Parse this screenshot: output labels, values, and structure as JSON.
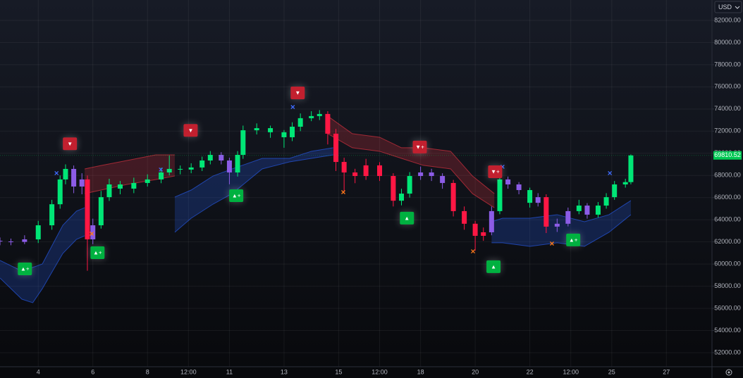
{
  "chart_data": {
    "type": "candlestick",
    "currency": "USD",
    "xlim": [
      2.6,
      28.67
    ],
    "ylim": [
      50730,
      83840
    ],
    "xticks": [
      4,
      6,
      8,
      {
        "value": 9.5,
        "label": "12:00"
      },
      11,
      13,
      15,
      {
        "value": 16.5,
        "label": "12:00"
      },
      18,
      20,
      22,
      {
        "value": 23.5,
        "label": "12:00"
      },
      25,
      27
    ],
    "yticks": [
      {
        "value": 52000,
        "label": "52000.00"
      },
      {
        "value": 54000,
        "label": "54000.00"
      },
      {
        "value": 56000,
        "label": "56000.00"
      },
      {
        "value": 58000,
        "label": "58000.00"
      },
      {
        "value": 60000,
        "label": "60000.00"
      },
      {
        "value": 62000,
        "label": "62000.00"
      },
      {
        "value": 64000,
        "label": "64000.00"
      },
      {
        "value": 66000,
        "label": "66000.00"
      },
      {
        "value": 68000,
        "label": "68000.00"
      },
      {
        "value": 70000,
        "label": "70000.00"
      },
      {
        "value": 72000,
        "label": "72000.00"
      },
      {
        "value": 74000,
        "label": "74000.00"
      },
      {
        "value": 76000,
        "label": "76000.00"
      },
      {
        "value": 78000,
        "label": "78000.00"
      },
      {
        "value": 80000,
        "label": "80000.00"
      },
      {
        "value": 82000,
        "label": "82000.00"
      }
    ],
    "grid": true,
    "last_price": {
      "value": 69810.52,
      "label": "69810.52",
      "color": "#00c853"
    },
    "candles": {
      "x": [
        2.6,
        3.0,
        3.5,
        4.0,
        4.5,
        4.8,
        5.0,
        5.3,
        5.6,
        5.8,
        6.0,
        6.3,
        6.6,
        7.0,
        7.5,
        8.0,
        8.5,
        8.8,
        9.2,
        9.6,
        10.0,
        10.3,
        10.7,
        11.0,
        11.3,
        11.5,
        12.0,
        12.5,
        13.0,
        13.3,
        13.6,
        14.0,
        14.3,
        14.6,
        14.9,
        15.2,
        15.6,
        16.0,
        16.5,
        17.0,
        17.3,
        17.6,
        18.0,
        18.4,
        18.8,
        19.2,
        19.6,
        20.0,
        20.3,
        20.6,
        20.9,
        21.2,
        21.6,
        22.0,
        22.3,
        22.6,
        23.0,
        23.4,
        23.8,
        24.1,
        24.5,
        24.8,
        25.1,
        25.5,
        25.7
      ],
      "open": [
        62100,
        62040,
        62000,
        62230,
        63500,
        65400,
        67640,
        68590,
        67000,
        67640,
        62230,
        63500,
        66040,
        67190,
        66810,
        67320,
        67640,
        68270,
        68590,
        68530,
        68720,
        69350,
        69860,
        69350,
        68270,
        69860,
        72080,
        72270,
        71900,
        71450,
        72400,
        73170,
        73360,
        73550,
        71770,
        69220,
        68270,
        67950,
        68910,
        67950,
        65720,
        66360,
        67950,
        68270,
        67950,
        67320,
        64780,
        63640,
        62550,
        62870,
        64780,
        67640,
        67190,
        66680,
        65530,
        66040,
        63380,
        63640,
        64780,
        65280,
        64460,
        65280,
        66040,
        67190,
        67400
      ],
      "high": [
        62400,
        62300,
        62600,
        63900,
        65800,
        68000,
        69000,
        68900,
        68200,
        68000,
        64100,
        66600,
        67700,
        67500,
        67800,
        68100,
        68700,
        69800,
        68900,
        69100,
        69700,
        70200,
        70100,
        69600,
        70200,
        72500,
        72700,
        72500,
        72100,
        72800,
        73600,
        73800,
        73900,
        73800,
        72200,
        69600,
        68600,
        69500,
        69200,
        68200,
        66800,
        68300,
        68800,
        68600,
        68200,
        67600,
        65200,
        63900,
        63300,
        65200,
        68200,
        67900,
        67400,
        66900,
        66400,
        66300,
        64100,
        65100,
        65800,
        65500,
        65600,
        66400,
        67500,
        67700,
        69900
      ],
      "low": [
        61700,
        61700,
        61800,
        61900,
        63100,
        65000,
        67200,
        66400,
        66300,
        59400,
        61800,
        63200,
        65700,
        66300,
        66400,
        67000,
        67300,
        68000,
        68100,
        68200,
        68400,
        69000,
        69000,
        67200,
        67900,
        69500,
        71700,
        71400,
        70500,
        71100,
        72000,
        72900,
        73000,
        70800,
        68400,
        66500,
        67300,
        67600,
        67500,
        65200,
        65300,
        66000,
        67600,
        67500,
        66800,
        64300,
        63100,
        61200,
        62100,
        62600,
        64500,
        66800,
        66300,
        65100,
        65200,
        62800,
        62900,
        63400,
        64500,
        64100,
        64200,
        65000,
        65800,
        66900,
        67200
      ],
      "close": [
        62040,
        62000,
        62230,
        63500,
        65400,
        67640,
        68590,
        67000,
        67640,
        62230,
        63500,
        66040,
        67190,
        66810,
        67320,
        67640,
        68270,
        68590,
        68530,
        68720,
        69350,
        69860,
        69350,
        68270,
        69860,
        72080,
        72270,
        71900,
        71450,
        72400,
        73170,
        73360,
        73550,
        71770,
        69220,
        68270,
        67950,
        68910,
        67950,
        65720,
        66360,
        67950,
        68270,
        67950,
        67320,
        64780,
        63640,
        62550,
        62870,
        64780,
        67640,
        67190,
        66680,
        65530,
        66040,
        63380,
        63640,
        64780,
        65280,
        64460,
        65280,
        66040,
        67190,
        67400,
        69810.52
      ],
      "colors": [
        "#8c5ce6",
        "#8c5ce6",
        "#8c5ce6",
        "#00e676",
        "#00e676",
        "#00e676",
        "#00e676",
        "#8c5ce6",
        "#8c5ce6",
        "#ff1744",
        "#8c5ce6",
        "#00e676",
        "#00e676",
        "#00e676",
        "#00e676",
        "#00e676",
        "#00e676",
        "#00e676",
        "#00e676",
        "#00e676",
        "#00e676",
        "#00e676",
        "#8c5ce6",
        "#8c5ce6",
        "#00e676",
        "#00e676",
        "#00e676",
        "#00e676",
        "#00e676",
        "#00e676",
        "#00e676",
        "#00e676",
        "#00e676",
        "#ff1744",
        "#ff1744",
        "#ff1744",
        "#ff1744",
        "#ff1744",
        "#ff1744",
        "#ff1744",
        "#00e676",
        "#00e676",
        "#8c5ce6",
        "#8c5ce6",
        "#8c5ce6",
        "#ff1744",
        "#ff1744",
        "#ff1744",
        "#ff1744",
        "#8c5ce6",
        "#00e676",
        "#8c5ce6",
        "#8c5ce6",
        "#00e676",
        "#8c5ce6",
        "#ff1744",
        "#8c5ce6",
        "#8c5ce6",
        "#00e676",
        "#8c5ce6",
        "#00e676",
        "#00e676",
        "#00e676",
        "#00e676",
        "#00e676"
      ]
    },
    "bands": [
      {
        "color": "#2962ff",
        "x": [
          2.6,
          3.4,
          3.8,
          4.15,
          4.9,
          5.4,
          5.7,
          7.0,
          9.0,
          9.6,
          10.4,
          11.1,
          12.2,
          13.2,
          14.0,
          14.8,
          17.5,
          20.6,
          21.0,
          22.0,
          23.0,
          24.0,
          24.9,
          25.7
        ],
        "upper": [
          60330,
          59370,
          59700,
          60010,
          63500,
          64780,
          65090,
          null,
          66050,
          66680,
          67950,
          68590,
          69540,
          69540,
          70180,
          70500,
          null,
          63820,
          64140,
          64140,
          64460,
          63820,
          64460,
          65730
        ],
        "lower": [
          58740,
          56830,
          56510,
          57780,
          60960,
          62230,
          62550,
          null,
          62870,
          64140,
          65410,
          66360,
          68590,
          69220,
          69540,
          69860,
          null,
          61920,
          61920,
          61600,
          61920,
          61600,
          62870,
          64460
        ]
      },
      {
        "color": "#f23645",
        "x": [
          5.7,
          6.3,
          7.25,
          8.3,
          9.0,
          11.0,
          14.6,
          15.5,
          16.5,
          17.3,
          18.1,
          19.1,
          19.9,
          20.7
        ],
        "upper": [
          68590,
          68900,
          69350,
          69860,
          69860,
          null,
          73360,
          71770,
          71450,
          70500,
          70500,
          70180,
          67950,
          66360
        ],
        "lower": [
          66360,
          66680,
          67190,
          67630,
          67950,
          null,
          71770,
          70500,
          70180,
          69540,
          68910,
          68590,
          66360,
          65090
        ]
      }
    ],
    "signals": [
      {
        "x": 5.16,
        "y": 70800,
        "label": "▼",
        "color": "#c2202f"
      },
      {
        "x": 9.58,
        "y": 72000,
        "label": "▼",
        "color": "#c2202f"
      },
      {
        "x": 13.5,
        "y": 75390,
        "label": "▼",
        "color": "#c2202f"
      },
      {
        "x": 17.97,
        "y": 70500,
        "label": "▼+",
        "color": "#c2202f"
      },
      {
        "x": 20.73,
        "y": 68270,
        "label": "▼+",
        "color": "#c2202f"
      },
      {
        "x": 3.51,
        "y": 59500,
        "label": "▲+",
        "color": "#00b140"
      },
      {
        "x": 6.17,
        "y": 60960,
        "label": "▲+",
        "color": "#00b140"
      },
      {
        "x": 11.25,
        "y": 66110,
        "label": "▲+",
        "color": "#00b140"
      },
      {
        "x": 17.5,
        "y": 64080,
        "label": "▲",
        "color": "#00b140"
      },
      {
        "x": 20.67,
        "y": 59700,
        "label": "▲",
        "color": "#00b140"
      },
      {
        "x": 23.59,
        "y": 62110,
        "label": "▲+",
        "color": "#00b140"
      }
    ],
    "crosses": {
      "x": [
        4.67,
        8.49,
        13.32,
        21.0,
        24.93,
        5.96,
        15.17,
        19.92,
        22.81
      ],
      "y": [
        68210,
        68530,
        74180,
        68780,
        68210,
        62740,
        66490,
        61150,
        61850
      ],
      "colors": [
        "#3f6bff",
        "#3f6bff",
        "#3f6bff",
        "#3f6bff",
        "#3f6bff",
        "#ff7a1a",
        "#ff7a1a",
        "#ff7a1a",
        "#ff7a1a"
      ]
    }
  }
}
